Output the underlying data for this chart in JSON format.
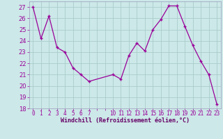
{
  "x": [
    0,
    1,
    2,
    3,
    4,
    5,
    6,
    7,
    10,
    11,
    12,
    13,
    14,
    15,
    16,
    17,
    18,
    19,
    20,
    21,
    22,
    23
  ],
  "y": [
    27,
    24.2,
    26.2,
    23.4,
    23.0,
    21.6,
    21.0,
    20.4,
    21.0,
    20.6,
    22.7,
    23.8,
    23.1,
    25.0,
    25.9,
    27.1,
    27.1,
    25.3,
    23.6,
    22.2,
    21.0,
    18.4
  ],
  "line_color": "#990099",
  "marker_color": "#990099",
  "bg_color": "#cce8e8",
  "grid_color": "#aacccc",
  "xlabel": "Windchill (Refroidissement éolien,°C)",
  "xlabel_color": "#660066",
  "tick_color": "#990099",
  "axis_line_color": "#9999bb",
  "ylim": [
    18,
    27.5
  ],
  "yticks": [
    18,
    19,
    20,
    21,
    22,
    23,
    24,
    25,
    26,
    27
  ],
  "xtick_labels_all": [
    "0",
    "1",
    "2",
    "3",
    "4",
    "5",
    "6",
    "7",
    "",
    "",
    "10",
    "11",
    "12",
    "13",
    "14",
    "15",
    "16",
    "17",
    "18",
    "19",
    "20",
    "21",
    "22",
    "23"
  ],
  "xtick_positions_all": [
    0,
    1,
    2,
    3,
    4,
    5,
    6,
    7,
    8,
    9,
    10,
    11,
    12,
    13,
    14,
    15,
    16,
    17,
    18,
    19,
    20,
    21,
    22,
    23
  ],
  "xlim": [
    -0.5,
    23.5
  ]
}
